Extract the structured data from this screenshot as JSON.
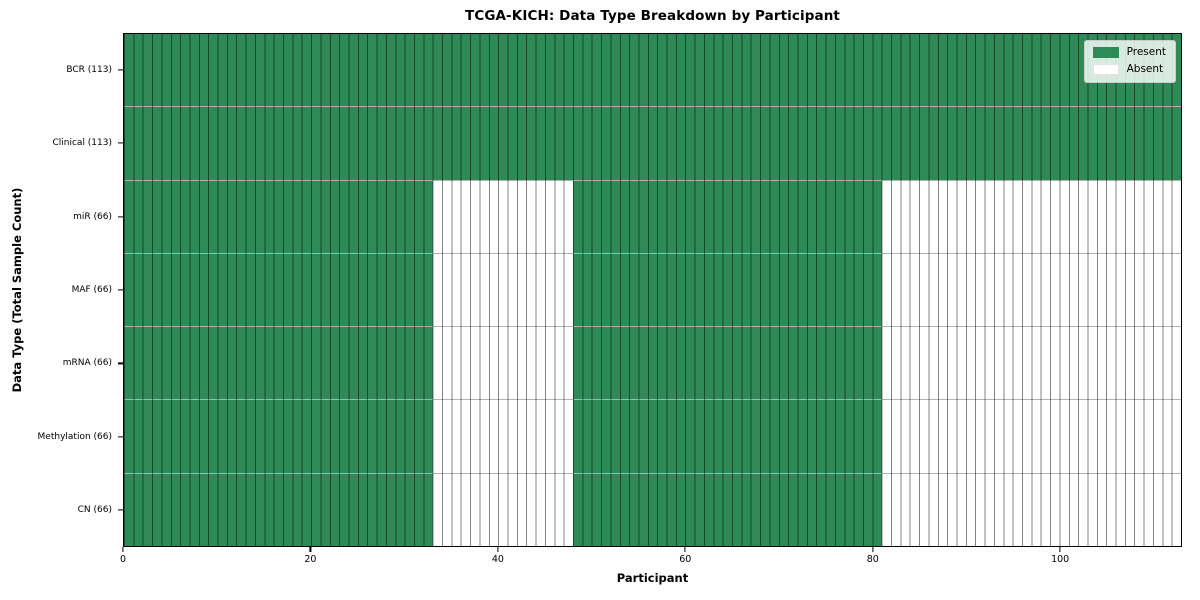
{
  "chart_data": {
    "type": "heatmap",
    "title": "TCGA-KICH: Data Type Breakdown by Participant",
    "xlabel": "Participant",
    "ylabel": "Data Type (Total Sample Count)",
    "x_ticks": [
      0,
      20,
      40,
      60,
      80,
      100
    ],
    "x_range": [
      0,
      113
    ],
    "n_participants": 113,
    "grid": false,
    "legend_position": "upper right",
    "legend": [
      {
        "label": "Present",
        "color": "#2e8b57"
      },
      {
        "label": "Absent",
        "color": "#ffffff"
      }
    ],
    "cell_edge_color": "rgba(0,0,0,0.48)",
    "row_separator_color": "rgba(0,0,0,0.30)",
    "rows": [
      {
        "label": "BCR (113)",
        "data_type": "BCR",
        "total_sample_count": 113,
        "present_segments": [
          [
            0,
            113
          ]
        ],
        "absent_segments": []
      },
      {
        "label": "Clinical (113)",
        "data_type": "Clinical",
        "total_sample_count": 113,
        "present_segments": [
          [
            0,
            113
          ]
        ],
        "absent_segments": []
      },
      {
        "label": "miR (66)",
        "data_type": "miR",
        "total_sample_count": 66,
        "present_segments": [
          [
            0,
            33
          ],
          [
            48,
            81
          ]
        ],
        "absent_segments": [
          [
            33,
            48
          ],
          [
            81,
            113
          ]
        ]
      },
      {
        "label": "MAF (66)",
        "data_type": "MAF",
        "total_sample_count": 66,
        "present_segments": [
          [
            0,
            33
          ],
          [
            48,
            81
          ]
        ],
        "absent_segments": [
          [
            33,
            48
          ],
          [
            81,
            113
          ]
        ]
      },
      {
        "label": "mRNA (66)",
        "data_type": "mRNA",
        "total_sample_count": 66,
        "present_segments": [
          [
            0,
            33
          ],
          [
            48,
            81
          ]
        ],
        "absent_segments": [
          [
            33,
            48
          ],
          [
            81,
            113
          ]
        ]
      },
      {
        "label": "Methylation (66)",
        "data_type": "Methylation",
        "total_sample_count": 66,
        "present_segments": [
          [
            0,
            33
          ],
          [
            48,
            81
          ]
        ],
        "absent_segments": [
          [
            33,
            48
          ],
          [
            81,
            113
          ]
        ]
      },
      {
        "label": "CN (66)",
        "data_type": "CN",
        "total_sample_count": 66,
        "present_segments": [
          [
            0,
            33
          ],
          [
            48,
            81
          ]
        ],
        "absent_segments": [
          [
            33,
            48
          ],
          [
            81,
            113
          ]
        ]
      }
    ]
  }
}
